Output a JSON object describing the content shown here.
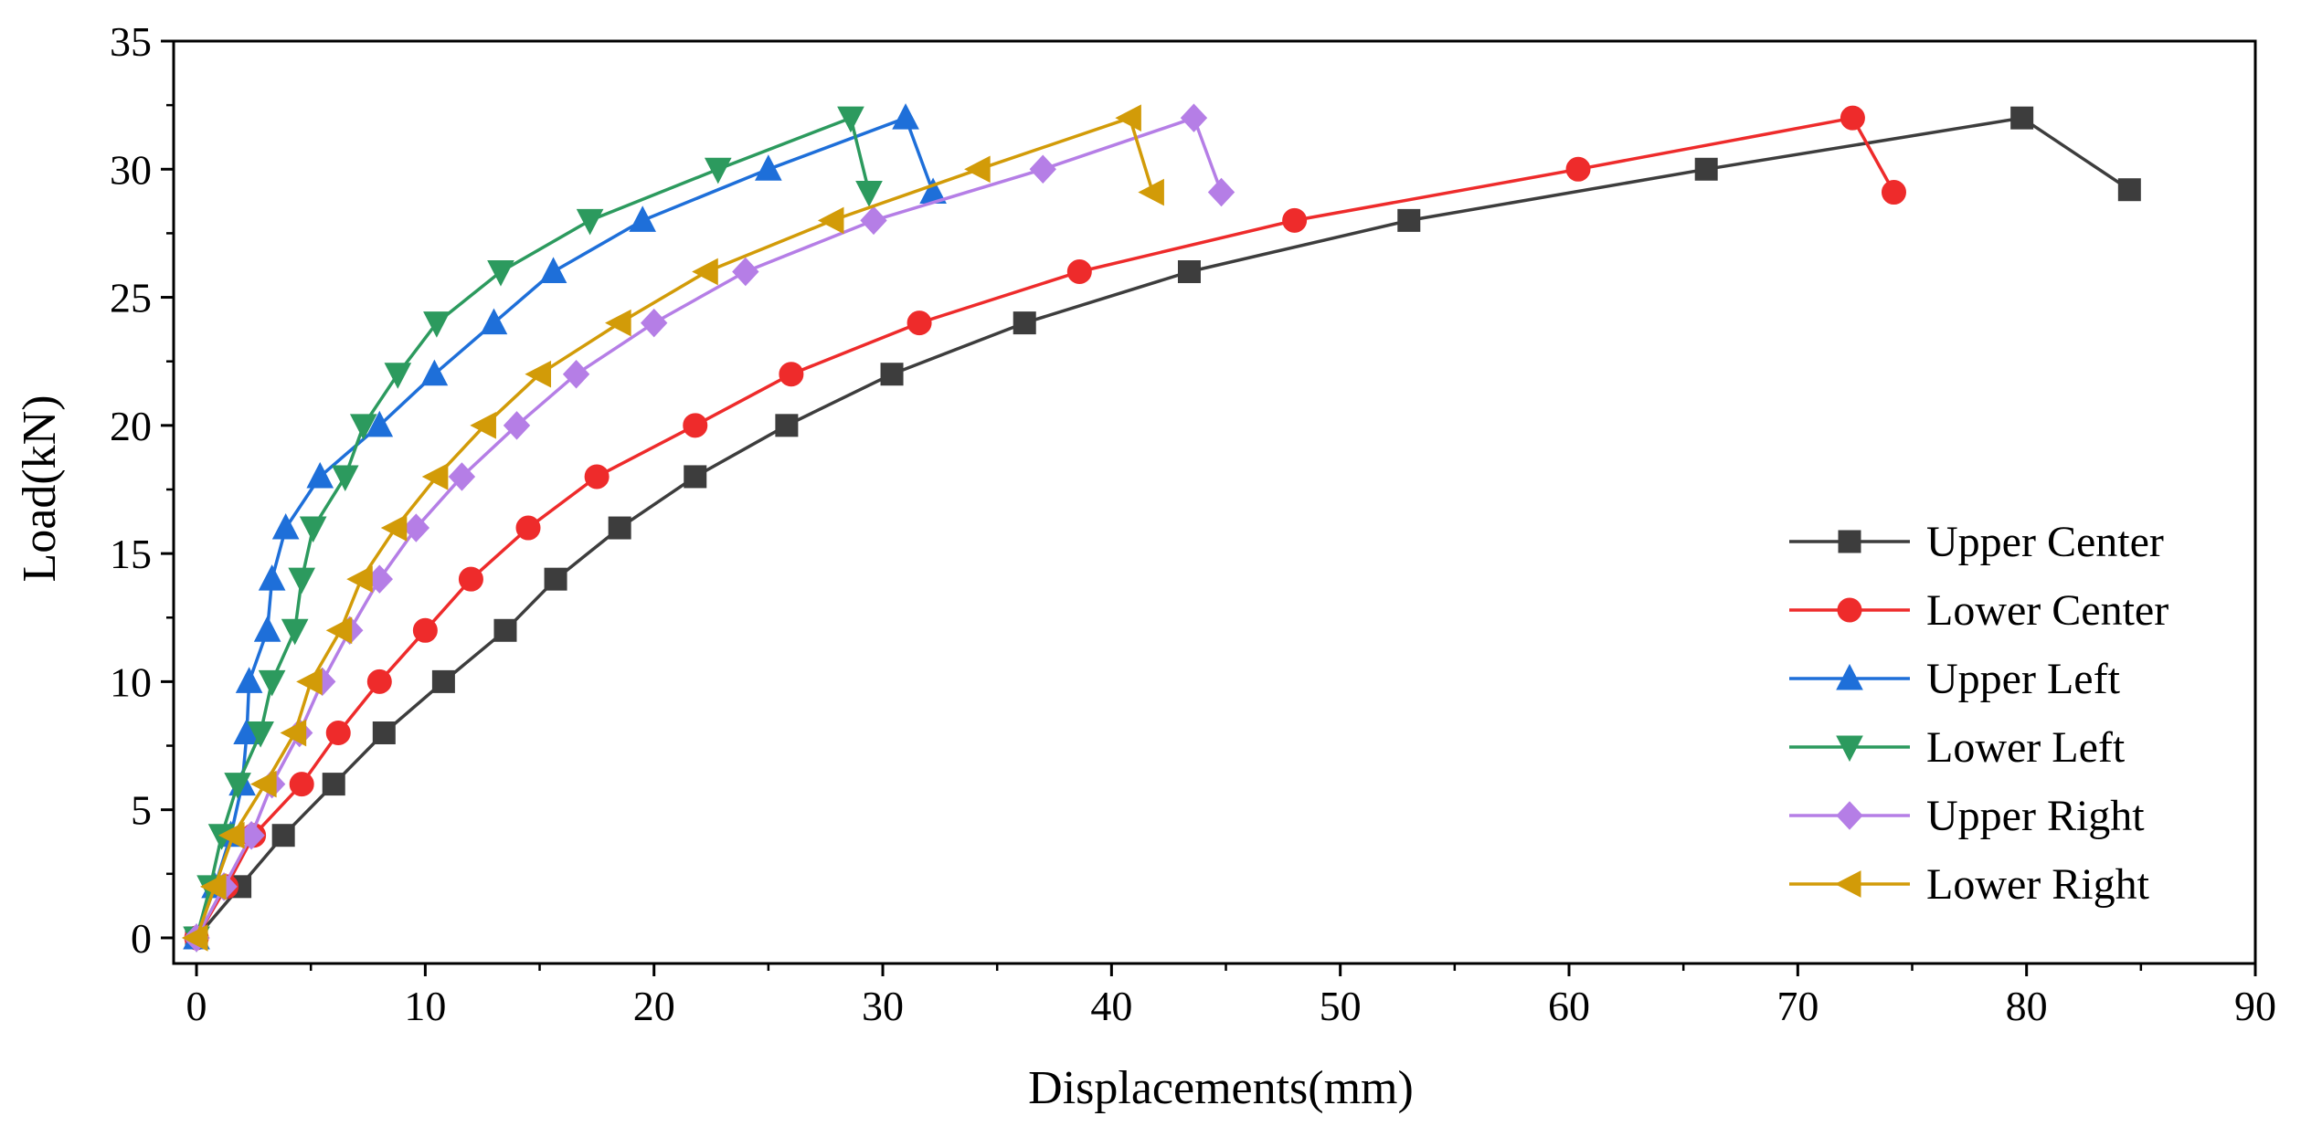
{
  "chart_data": {
    "type": "line",
    "title": "",
    "xlabel": "Displacements(mm)",
    "ylabel": "Load(kN)",
    "xlim": [
      -1,
      90
    ],
    "ylim": [
      -1,
      35
    ],
    "xticks": [
      0,
      10,
      20,
      30,
      40,
      50,
      60,
      70,
      80,
      90
    ],
    "yticks": [
      0,
      5,
      10,
      15,
      20,
      25,
      30,
      35
    ],
    "legend_position": "right",
    "series": [
      {
        "name": "Upper Center",
        "color": "#3d3d3d",
        "marker": "square",
        "x": [
          0,
          1.9,
          3.8,
          6.0,
          8.2,
          10.8,
          13.5,
          15.7,
          18.5,
          21.8,
          25.8,
          30.4,
          36.2,
          43.4,
          53.0,
          66.0,
          79.8,
          84.5
        ],
        "y": [
          0,
          2,
          4,
          6,
          8,
          10,
          12,
          14,
          16,
          18,
          20,
          22,
          24,
          26,
          28,
          30,
          32,
          29.2
        ]
      },
      {
        "name": "Lower Center",
        "color": "#ee2b2b",
        "marker": "circle",
        "x": [
          0,
          1.3,
          2.5,
          4.6,
          6.2,
          8.0,
          10.0,
          12.0,
          14.5,
          17.5,
          21.8,
          26.0,
          31.6,
          38.6,
          48.0,
          60.4,
          72.4,
          74.2
        ],
        "y": [
          0,
          2,
          4,
          6,
          8,
          10,
          12,
          14,
          16,
          18,
          20,
          22,
          24,
          26,
          28,
          30,
          32,
          29.1
        ]
      },
      {
        "name": "Upper Left",
        "color": "#1e6fd9",
        "marker": "triangle-up",
        "x": [
          0,
          0.8,
          1.5,
          2.0,
          2.2,
          2.3,
          3.1,
          3.3,
          3.9,
          5.4,
          8.0,
          10.4,
          13.0,
          15.6,
          19.5,
          25.0,
          31.0,
          32.2
        ],
        "y": [
          0,
          2,
          4,
          6,
          8,
          10,
          12,
          14,
          16,
          18,
          20,
          22,
          24,
          26,
          28,
          30,
          32,
          29.1
        ]
      },
      {
        "name": "Lower Left",
        "color": "#2c9a5e",
        "marker": "triangle-down",
        "x": [
          0,
          0.6,
          1.1,
          1.8,
          2.8,
          3.3,
          4.3,
          4.6,
          5.1,
          6.5,
          7.3,
          8.8,
          10.5,
          13.3,
          17.2,
          22.8,
          28.6,
          29.4
        ],
        "y": [
          0,
          2,
          4,
          6,
          8,
          10,
          12,
          14,
          16,
          18,
          20,
          22,
          24,
          26,
          28,
          30,
          32,
          29.1
        ]
      },
      {
        "name": "Upper Right",
        "color": "#b57ee6",
        "marker": "diamond",
        "x": [
          0,
          1.2,
          2.4,
          3.3,
          4.5,
          5.5,
          6.7,
          8.0,
          9.6,
          11.6,
          14.0,
          16.6,
          20.0,
          24.0,
          29.6,
          37.0,
          43.6,
          44.8
        ],
        "y": [
          0,
          2,
          4,
          6,
          8,
          10,
          12,
          14,
          16,
          18,
          20,
          22,
          24,
          26,
          28,
          30,
          32,
          29.1
        ]
      },
      {
        "name": "Lower Right",
        "color": "#d29b08",
        "marker": "triangle-left",
        "x": [
          0,
          0.8,
          1.6,
          3.0,
          4.3,
          5.0,
          6.3,
          7.2,
          8.7,
          10.5,
          12.6,
          15.0,
          18.5,
          22.3,
          27.8,
          34.2,
          40.8,
          41.8
        ],
        "y": [
          0,
          2,
          4,
          6,
          8,
          10,
          12,
          14,
          16,
          18,
          20,
          22,
          24,
          26,
          28,
          30,
          32,
          29.1
        ]
      }
    ]
  }
}
